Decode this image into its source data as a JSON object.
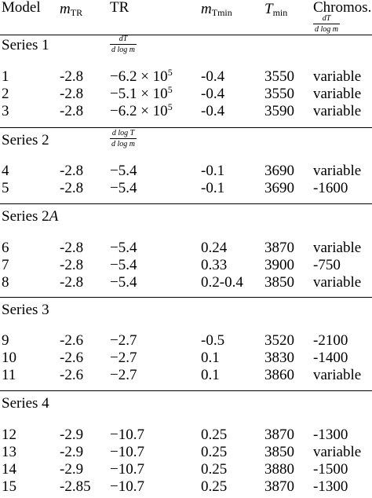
{
  "header": {
    "model": "Model",
    "mtr_main": "m",
    "mtr_sub": "TR",
    "tr": "TR",
    "mtmin_main": "m",
    "mtmin_sub": "Tmin",
    "tmin_main": "T",
    "tmin_sub": "min",
    "chromos": "Chromos.",
    "chromos_num": "dT",
    "chromos_den": "d log m"
  },
  "groups": [
    {
      "label": "Series 1",
      "tr_num": "dT",
      "tr_den": "d log m"
    },
    {
      "label": "Series 2",
      "tr_num": "d log T",
      "tr_den": "d log m"
    },
    {
      "label_main": "Series 2",
      "label_var": "A"
    },
    {
      "label": "Series 3"
    },
    {
      "label": "Series 4"
    }
  ],
  "rows": [
    {
      "model": "1",
      "mtr": "-2.8",
      "tr": "−6.2 × 10",
      "tr_exp": "5",
      "mtmin": "-0.4",
      "tmin": "3550",
      "chromos": "variable"
    },
    {
      "model": "2",
      "mtr": "-2.8",
      "tr": "−5.1 × 10",
      "tr_exp": "5",
      "mtmin": "-0.4",
      "tmin": "3550",
      "chromos": "variable"
    },
    {
      "model": "3",
      "mtr": "-2.8",
      "tr": "−6.2 × 10",
      "tr_exp": "5",
      "mtmin": "-0.4",
      "tmin": "3590",
      "chromos": "variable"
    },
    {
      "model": "4",
      "mtr": "-2.8",
      "tr": "−5.4",
      "mtmin": "-0.1",
      "tmin": "3690",
      "chromos": "variable"
    },
    {
      "model": "5",
      "mtr": "-2.8",
      "tr": "−5.4",
      "mtmin": "-0.1",
      "tmin": "3690",
      "chromos": "-1600"
    },
    {
      "model": "6",
      "mtr": "-2.8",
      "tr": "−5.4",
      "mtmin": "0.24",
      "tmin": "3870",
      "chromos": "variable"
    },
    {
      "model": "7",
      "mtr": "-2.8",
      "tr": "−5.4",
      "mtmin": "0.33",
      "tmin": "3900",
      "chromos": "-750"
    },
    {
      "model": "8",
      "mtr": "-2.8",
      "tr": "−5.4",
      "mtmin": "0.2-0.4",
      "tmin": "3850",
      "chromos": "variable"
    },
    {
      "model": "9",
      "mtr": "-2.6",
      "tr": "−2.7",
      "mtmin": "-0.5",
      "tmin": "3520",
      "chromos": "-2100"
    },
    {
      "model": "10",
      "mtr": "-2.6",
      "tr": "−2.7",
      "mtmin": "0.1",
      "tmin": "3830",
      "chromos": "-1400"
    },
    {
      "model": "11",
      "mtr": "-2.6",
      "tr": "−2.7",
      "mtmin": "0.1",
      "tmin": "3860",
      "chromos": "variable"
    },
    {
      "model": "12",
      "mtr": "-2.9",
      "tr": "−10.7",
      "mtmin": "0.25",
      "tmin": "3870",
      "chromos": "-1300"
    },
    {
      "model": "13",
      "mtr": "-2.9",
      "tr": "−10.7",
      "mtmin": "0.25",
      "tmin": "3850",
      "chromos": "variable"
    },
    {
      "model": "14",
      "mtr": "-2.9",
      "tr": "−10.7",
      "mtmin": "0.25",
      "tmin": "3880",
      "chromos": "-1500"
    },
    {
      "model": "15",
      "mtr": "-2.85",
      "tr": "−10.7",
      "mtmin": "0.25",
      "tmin": "3870",
      "chromos": "-1300"
    }
  ]
}
